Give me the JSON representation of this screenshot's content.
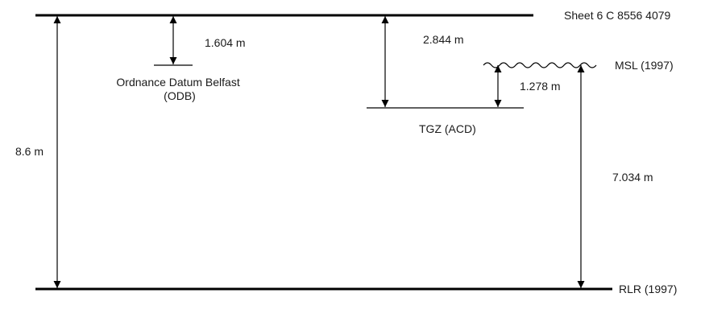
{
  "diagram": {
    "sheet_label": "Sheet 6 C 8556 4079",
    "msl_label": "MSL (1997)",
    "rlr_label": "RLR (1997)",
    "odb_label_line1": "Ordnance Datum Belfast",
    "odb_label_line2": "(ODB)",
    "tgz_label": "TGZ (ACD)",
    "dimensions": {
      "sheet_to_rlr": "8.6 m",
      "sheet_to_odb": "1.604 m",
      "sheet_to_tgz": "2.844 m",
      "tgz_to_msl": "1.278 m",
      "msl_to_rlr": "7.034 m"
    }
  }
}
